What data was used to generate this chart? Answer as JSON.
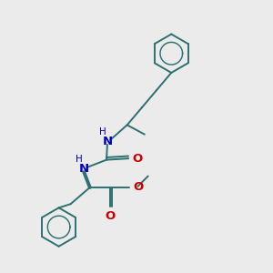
{
  "background_color": "#ebebeb",
  "bond_color": "#2d7070",
  "N_color": "#0000bb",
  "O_color": "#cc0000",
  "figsize": [
    3.0,
    3.0
  ],
  "dpi": 100,
  "xlim": [
    0,
    10
  ],
  "ylim": [
    0,
    10
  ]
}
